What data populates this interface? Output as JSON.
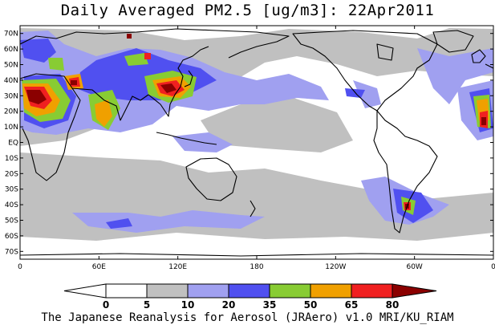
{
  "title": "Daily Averaged PM2.5 [ug/m3]: 22Apr2011",
  "credit": "The Japanese Reanalysis for Aerosol (JRAero) v1.0 MRI/KU_RIAM",
  "lat_labels": [
    "70N",
    "60N",
    "50N",
    "40N",
    "30N",
    "20N",
    "10N",
    "EQ",
    "10S",
    "20S",
    "30S",
    "40S",
    "50S",
    "60S",
    "70S"
  ],
  "lon_labels": [
    "0",
    "60E",
    "120E",
    "180",
    "120W",
    "60W",
    "0"
  ],
  "colorbar": {
    "levels": [
      "0",
      "5",
      "10",
      "20",
      "35",
      "50",
      "65",
      "80"
    ],
    "colors": [
      "#ffffff",
      "#c0c0c0",
      "#a0a0f0",
      "#5050f0",
      "#88cc33",
      "#f0a000",
      "#f02020",
      "#8b0000"
    ]
  },
  "chart_data": {
    "type": "heatmap",
    "title": "Daily Averaged PM2.5 [ug/m3]: 22Apr2011",
    "variable": "PM2.5",
    "units": "ug/m3",
    "date": "22Apr2011",
    "lat_range": [
      -75,
      75
    ],
    "lon_range": [
      0,
      360
    ],
    "color_levels": [
      0,
      5,
      10,
      20,
      35,
      50,
      65,
      80
    ],
    "level_colors": [
      "#ffffff",
      "#c0c0c0",
      "#a0a0f0",
      "#5050f0",
      "#88cc33",
      "#f0a000",
      "#f02020",
      "#8b0000"
    ]
  }
}
